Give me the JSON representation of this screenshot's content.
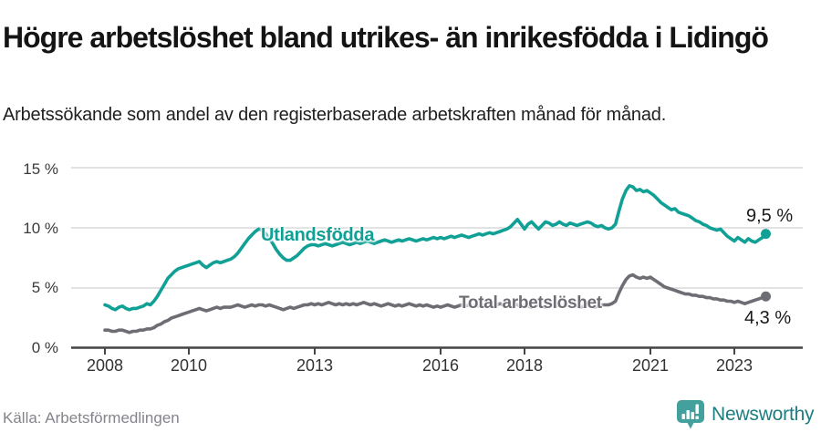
{
  "header": {
    "title": "Högre arbetslöshet bland utrikes- än inrikesfödda i Lidingö",
    "subtitle": "Arbetssökande som andel av den registerbaserade arbetskraften månad för månad."
  },
  "footer": {
    "source": "Källa: Arbetsförmedlingen",
    "brand_name": "Newsworthy"
  },
  "colors": {
    "teal_line": "#10a096",
    "gray_line": "#6d6d74",
    "grid": "#d9d9d9",
    "axis": "#444444",
    "brand_icon": "#43a09c",
    "brand_text": "#1e7d80"
  },
  "chart_data": {
    "type": "line",
    "title": "Högre arbetslöshet bland utrikes- än inrikesfödda i Lidingö",
    "subtitle": "Arbetssökande som andel av den registerbaserade arbetskraften månad för månad.",
    "unit": "%",
    "x_frequency": "monthly",
    "x_start_year": 2008,
    "x_end": "2023-10",
    "ylim": [
      0,
      15
    ],
    "grid": true,
    "legend": "inline-labels",
    "yticks": [
      {
        "value": 0,
        "label": "0 %"
      },
      {
        "value": 5,
        "label": "5 %"
      },
      {
        "value": 10,
        "label": "10 %"
      },
      {
        "value": 15,
        "label": "15 %"
      }
    ],
    "xticks": [
      {
        "year": 2008,
        "label": "2008"
      },
      {
        "year": 2010,
        "label": "2010"
      },
      {
        "year": 2013,
        "label": "2013"
      },
      {
        "year": 2016,
        "label": "2016"
      },
      {
        "year": 2018,
        "label": "2018"
      },
      {
        "year": 2021,
        "label": "2021"
      },
      {
        "year": 2023,
        "label": "2023"
      }
    ],
    "series": [
      {
        "name": "Utlandsfödda",
        "color": "#10a096",
        "end_value": 9.5,
        "end_label": "9,5 %",
        "values": [
          3.6,
          3.5,
          3.3,
          3.2,
          3.4,
          3.5,
          3.3,
          3.2,
          3.3,
          3.3,
          3.4,
          3.5,
          3.7,
          3.6,
          3.9,
          4.3,
          4.8,
          5.3,
          5.8,
          6.1,
          6.4,
          6.6,
          6.7,
          6.8,
          6.9,
          7.0,
          7.1,
          7.2,
          6.9,
          6.7,
          6.9,
          7.1,
          7.2,
          7.1,
          7.2,
          7.3,
          7.4,
          7.6,
          7.9,
          8.3,
          8.7,
          9.1,
          9.4,
          9.7,
          9.9,
          9.8,
          9.5,
          9.1,
          8.7,
          8.2,
          7.8,
          7.5,
          7.3,
          7.3,
          7.5,
          7.7,
          8.0,
          8.3,
          8.5,
          8.6,
          8.6,
          8.5,
          8.6,
          8.7,
          8.6,
          8.5,
          8.6,
          8.7,
          8.8,
          8.7,
          8.6,
          8.7,
          8.8,
          8.7,
          8.8,
          8.9,
          8.8,
          8.7,
          8.8,
          8.9,
          9.0,
          8.9,
          8.8,
          8.9,
          9.0,
          8.9,
          9.0,
          9.1,
          9.0,
          8.9,
          9.0,
          9.1,
          9.0,
          9.1,
          9.2,
          9.1,
          9.2,
          9.1,
          9.2,
          9.3,
          9.2,
          9.3,
          9.4,
          9.3,
          9.2,
          9.3,
          9.4,
          9.5,
          9.4,
          9.5,
          9.6,
          9.5,
          9.6,
          9.7,
          9.8,
          9.9,
          10.1,
          10.4,
          10.7,
          10.3,
          9.9,
          10.3,
          10.5,
          10.2,
          9.9,
          10.2,
          10.5,
          10.4,
          10.2,
          10.3,
          10.5,
          10.3,
          10.2,
          10.4,
          10.3,
          10.2,
          10.3,
          10.4,
          10.5,
          10.4,
          10.2,
          10.1,
          10.2,
          10.0,
          9.9,
          10.0,
          10.3,
          11.4,
          12.4,
          13.1,
          13.5,
          13.4,
          13.1,
          13.2,
          13.0,
          13.1,
          12.9,
          12.7,
          12.4,
          12.1,
          11.9,
          11.7,
          11.5,
          11.6,
          11.3,
          11.2,
          11.1,
          11.0,
          10.8,
          10.6,
          10.5,
          10.3,
          10.2,
          10.0,
          9.9,
          9.8,
          9.9,
          9.6,
          9.3,
          9.1,
          8.9,
          9.2,
          9.0,
          8.8,
          9.1,
          8.9,
          8.8,
          9.0,
          9.2,
          9.5
        ]
      },
      {
        "name": "Total arbetslöshet",
        "color": "#6d6d74",
        "end_value": 4.3,
        "end_label": "4,3 %",
        "values": [
          1.5,
          1.5,
          1.4,
          1.4,
          1.5,
          1.5,
          1.4,
          1.3,
          1.4,
          1.4,
          1.5,
          1.5,
          1.6,
          1.6,
          1.7,
          1.9,
          2.0,
          2.2,
          2.3,
          2.5,
          2.6,
          2.7,
          2.8,
          2.9,
          3.0,
          3.1,
          3.2,
          3.3,
          3.2,
          3.1,
          3.2,
          3.3,
          3.4,
          3.3,
          3.4,
          3.4,
          3.4,
          3.5,
          3.6,
          3.5,
          3.4,
          3.5,
          3.6,
          3.5,
          3.6,
          3.6,
          3.5,
          3.6,
          3.5,
          3.4,
          3.3,
          3.2,
          3.3,
          3.4,
          3.3,
          3.4,
          3.5,
          3.6,
          3.6,
          3.7,
          3.6,
          3.7,
          3.6,
          3.7,
          3.8,
          3.7,
          3.6,
          3.7,
          3.6,
          3.7,
          3.6,
          3.7,
          3.6,
          3.7,
          3.8,
          3.7,
          3.6,
          3.7,
          3.6,
          3.5,
          3.6,
          3.7,
          3.6,
          3.5,
          3.6,
          3.5,
          3.6,
          3.7,
          3.6,
          3.5,
          3.6,
          3.5,
          3.6,
          3.5,
          3.4,
          3.5,
          3.4,
          3.5,
          3.6,
          3.5,
          3.4,
          3.5,
          3.6,
          3.5,
          3.6,
          3.5,
          3.6,
          3.5,
          3.6,
          3.5,
          3.6,
          3.5,
          3.6,
          3.7,
          3.6,
          3.5,
          3.6,
          3.7,
          3.6,
          3.5,
          3.6,
          3.5,
          3.4,
          3.5,
          3.6,
          3.5,
          3.4,
          3.5,
          3.6,
          3.5,
          3.6,
          3.5,
          3.6,
          3.5,
          3.6,
          3.5,
          3.4,
          3.5,
          3.6,
          3.5,
          3.4,
          3.5,
          3.6,
          3.6,
          3.6,
          3.7,
          3.9,
          4.6,
          5.2,
          5.7,
          6.0,
          6.1,
          5.9,
          5.8,
          5.9,
          5.8,
          5.9,
          5.7,
          5.5,
          5.3,
          5.1,
          5.0,
          4.9,
          4.8,
          4.7,
          4.6,
          4.5,
          4.5,
          4.4,
          4.4,
          4.3,
          4.3,
          4.2,
          4.2,
          4.1,
          4.1,
          4.0,
          4.0,
          3.9,
          3.9,
          3.8,
          3.9,
          3.8,
          3.7,
          3.8,
          3.9,
          4.0,
          4.1,
          4.2,
          4.3
        ]
      }
    ]
  }
}
